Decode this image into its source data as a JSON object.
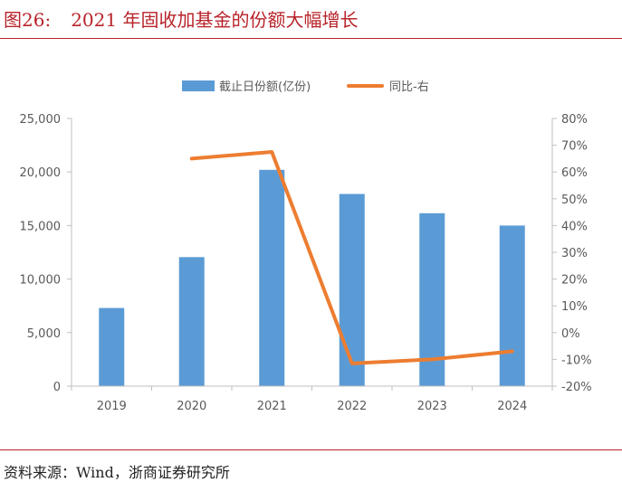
{
  "header": {
    "figure_no": "图26:",
    "title": "2021 年固收加基金的份额大幅增长"
  },
  "footer": {
    "source": "资料来源：Wind，浙商证券研究所"
  },
  "colors": {
    "bar": "#5b9bd5",
    "line": "#ed7d31",
    "accent": "#b8232a"
  },
  "chart_data": {
    "type": "bar",
    "categories": [
      "2019",
      "2020",
      "2021",
      "2022",
      "2023",
      "2024"
    ],
    "series": [
      {
        "name": "截止日份额(亿份)",
        "type": "bar",
        "axis": "left",
        "values": [
          7300,
          12050,
          20200,
          17950,
          16150,
          15000
        ]
      },
      {
        "name": "同比-右",
        "type": "line",
        "axis": "right",
        "values": [
          null,
          65,
          67.5,
          -11.5,
          -10,
          -7
        ]
      }
    ],
    "left_axis": {
      "min": 0,
      "max": 25000,
      "step": 5000,
      "ticks": [
        "0",
        "5,000",
        "10,000",
        "15,000",
        "20,000",
        "25,000"
      ]
    },
    "right_axis": {
      "min": -20,
      "max": 80,
      "step": 10,
      "ticks": [
        "-20%",
        "-10%",
        "0%",
        "10%",
        "20%",
        "30%",
        "40%",
        "50%",
        "60%",
        "70%",
        "80%"
      ]
    },
    "legend": "top-center",
    "grid": false
  }
}
